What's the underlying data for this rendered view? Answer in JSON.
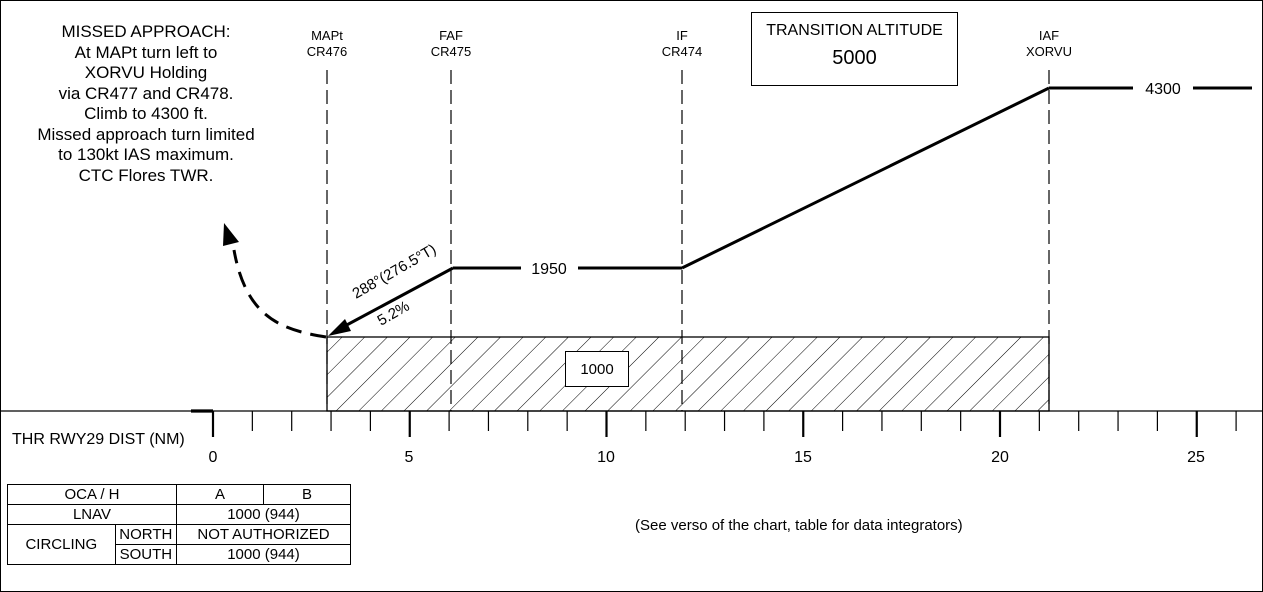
{
  "missed_approach": {
    "lines": [
      "MISSED APPROACH:",
      "At MAPt turn left to",
      "XORVU Holding",
      "via CR477 and CR478.",
      "Climb to 4300 ft.",
      "Missed approach turn limited",
      "to 130kt IAS maximum.",
      "CTC Flores TWR."
    ]
  },
  "waypoints": [
    {
      "role": "MAPt",
      "name": "CR476",
      "distance_nm": 2.8
    },
    {
      "role": "FAF",
      "name": "CR475",
      "distance_nm": 6.1
    },
    {
      "role": "IF",
      "name": "CR474",
      "distance_nm": 12.0
    },
    {
      "role": "IAF",
      "name": "XORVU",
      "distance_nm": 21.3
    }
  ],
  "transition_altitude": {
    "title": "TRANSITION ALTITUDE",
    "value": "5000"
  },
  "profile": {
    "altitudes": {
      "initial": "4300",
      "intermediate": "1950"
    },
    "final_track": "288°(276.5°T)",
    "descent_gradient": "5.2%",
    "obstacle_clearance_box": "1000"
  },
  "distance_scale": {
    "label": "THR RWY29 DIST (NM)",
    "major_ticks": [
      "0",
      "5",
      "10",
      "15",
      "20",
      "25"
    ]
  },
  "oca_table": {
    "header": {
      "label": "OCA / H",
      "col_a": "A",
      "col_b": "B"
    },
    "lnav": {
      "label": "LNAV",
      "value": "1000 (944)"
    },
    "circling": {
      "label": "CIRCLING",
      "north": {
        "label": "NORTH",
        "value": "NOT AUTHORIZED"
      },
      "south": {
        "label": "SOUTH",
        "value": "1000 (944)"
      }
    }
  },
  "note": "(See verso of the chart, table for data integrators)"
}
